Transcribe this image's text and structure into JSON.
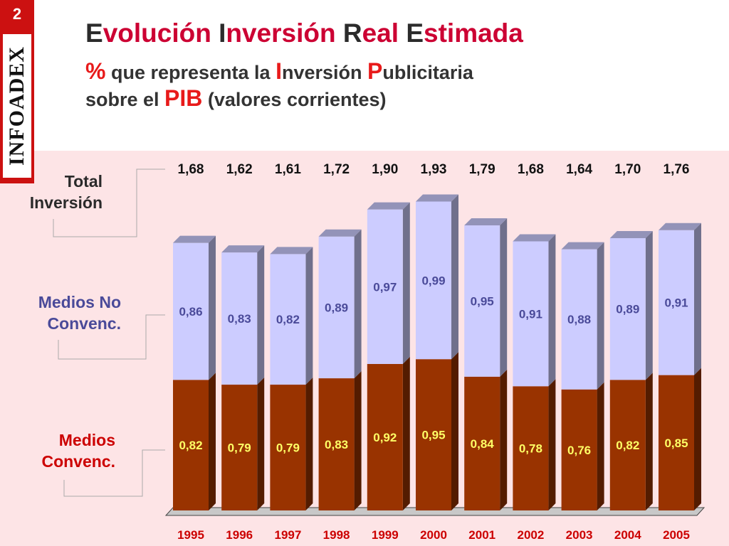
{
  "slide_number": "2",
  "logo_text": "INFOADEX",
  "title": {
    "p1_cap": "E",
    "p1_rest": "volución ",
    "p2_cap": "I",
    "p2_rest": "nversión ",
    "p3_cap": "R",
    "p3_rest": "eal ",
    "p4_cap": "E",
    "p4_rest": "stimada"
  },
  "subtitle": {
    "pct": "%",
    "line1_mid": " que representa la ",
    "i_cap": "I",
    "i_rest": "nversión ",
    "p_cap": "P",
    "p_rest": "ublicitaria",
    "line2_pre": "sobre el ",
    "pib": "PIB",
    "line2_post": " (valores corrientes)"
  },
  "labels": {
    "total": "Total Inversión",
    "no_convenc": "Medios  No Convenc.",
    "convenc": "Medios Convenc."
  },
  "colors": {
    "convenc": "#993300",
    "no_convenc": "#ccccff",
    "label_red": "#cc0000",
    "label_blue": "#4a4a99",
    "year_text": "#cc0000"
  },
  "chart_data": {
    "type": "bar",
    "stacked": true,
    "categories": [
      "1995",
      "1996",
      "1997",
      "1998",
      "1999",
      "2000",
      "2001",
      "2002",
      "2003",
      "2004",
      "2005"
    ],
    "series": [
      {
        "name": "Medios Convenc.",
        "values": [
          0.82,
          0.79,
          0.79,
          0.83,
          0.92,
          0.95,
          0.84,
          0.78,
          0.76,
          0.82,
          0.85
        ],
        "labels": [
          "0,82",
          "0,79",
          "0,79",
          "0,83",
          "0,92",
          "0,95",
          "0,84",
          "0,78",
          "0,76",
          "0,82",
          "0,85"
        ]
      },
      {
        "name": "Medios  No Convenc.",
        "values": [
          0.86,
          0.83,
          0.82,
          0.89,
          0.97,
          0.99,
          0.95,
          0.91,
          0.88,
          0.89,
          0.91
        ],
        "labels": [
          "0,86",
          "0,83",
          "0,82",
          "0,89",
          "0,97",
          "0,99",
          "0,95",
          "0,91",
          "0,88",
          "0,89",
          "0,91"
        ]
      }
    ],
    "totals": [
      "1,68",
      "1,62",
      "1,61",
      "1,72",
      "1,90",
      "1,93",
      "1,79",
      "1,68",
      "1,64",
      "1,70",
      "1,76"
    ],
    "ylim": [
      0,
      2.0
    ]
  }
}
